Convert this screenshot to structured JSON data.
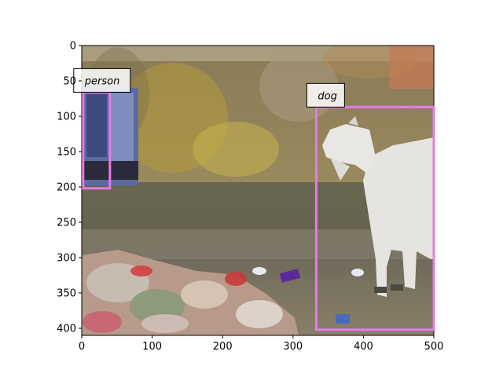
{
  "image": {
    "description_icon": "photo-street-cow-trash",
    "x_range": [
      0,
      500
    ],
    "y_range": [
      0,
      410
    ],
    "x_ticks": [
      "0",
      "100",
      "200",
      "300",
      "400",
      "500"
    ],
    "y_ticks": [
      "0",
      "50",
      "100",
      "150",
      "200",
      "250",
      "300",
      "350",
      "400"
    ]
  },
  "detections": [
    {
      "label": "person",
      "color": "#e67be6",
      "x0": 2,
      "y0": 66,
      "x1": 40,
      "y1": 202
    },
    {
      "label": "dog",
      "color": "#e67be6",
      "x0": 333,
      "y0": 87,
      "x1": 500,
      "y1": 402
    }
  ]
}
